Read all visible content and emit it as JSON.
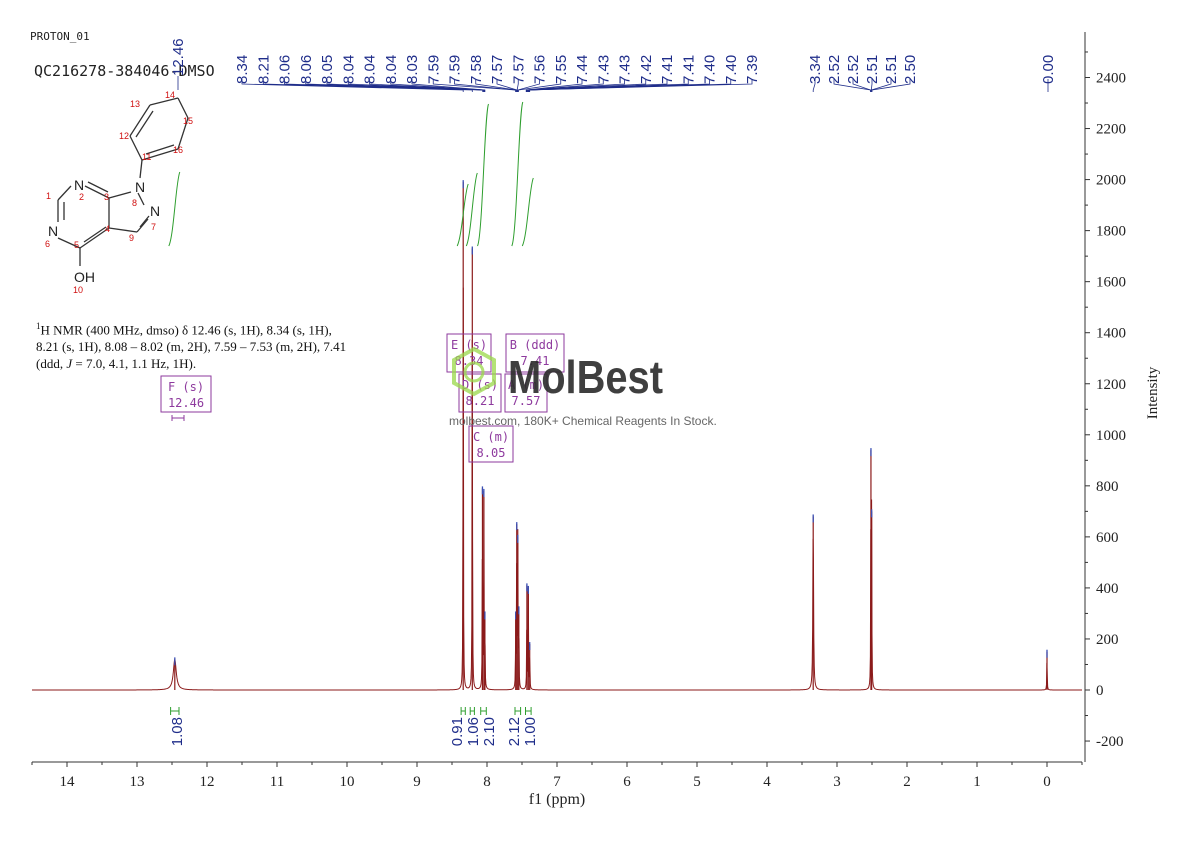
{
  "header": {
    "experiment": "PROTON_01",
    "sample": "QC216278-384046-DMSO"
  },
  "description": {
    "sup": "1",
    "line1": "H NMR (400 MHz, dmso) δ 12.46 (s, 1H), 8.34 (s, 1H),",
    "line2": "8.21 (s, 1H), 8.08 – 8.02 (m, 2H), 7.59 – 7.53 (m, 2H), 7.41",
    "line3_pre": "(ddd, ",
    "line3_j": "J",
    "line3_post": " = 7.0, 4.1, 1.1 Hz, 1H)."
  },
  "structure": {
    "atom_labels": {
      "N2": "N",
      "N6": "N",
      "N8": "N",
      "N7": "N",
      "O": "OH"
    },
    "numbers": [
      "1",
      "2",
      "3",
      "4",
      "5",
      "6",
      "7",
      "8",
      "9",
      "10",
      "11",
      "12",
      "13",
      "14",
      "15",
      "16"
    ]
  },
  "watermark": {
    "brand": "MolBest",
    "tagline": "molbest.com, 180K+ Chemical Reagents In Stock."
  },
  "colors": {
    "spectrum": "#8b1a1a",
    "peak_labels": "#1f2d8a",
    "integrals": "#2e9e2e",
    "multiplet_boxes": "#8e3a9e",
    "atom_numbers": "#d01010",
    "watermark": "#2b2b2b",
    "watermark_logo": "#9ad84a"
  },
  "chart_data": {
    "type": "line",
    "title": "",
    "xlabel": "f1 (ppm)",
    "ylabel": "Intensity",
    "xlim": [
      14.5,
      -0.5
    ],
    "ylim": [
      -250,
      2600
    ],
    "x_ticks": [
      14,
      13,
      12,
      11,
      10,
      9,
      8,
      7,
      6,
      5,
      4,
      3,
      2,
      1,
      0
    ],
    "y_ticks": [
      2400,
      2200,
      2000,
      1800,
      1600,
      1400,
      1200,
      1000,
      800,
      600,
      400,
      200,
      0,
      -200
    ],
    "peaks": [
      {
        "ppm": 12.46,
        "height": 120,
        "width": 0.025
      },
      {
        "ppm": 8.34,
        "height": 1990,
        "width": 0.003
      },
      {
        "ppm": 8.21,
        "height": 1730,
        "width": 0.003
      },
      {
        "ppm": 8.065,
        "height": 790,
        "width": 0.003
      },
      {
        "ppm": 8.045,
        "height": 780,
        "width": 0.003
      },
      {
        "ppm": 8.03,
        "height": 300,
        "width": 0.003
      },
      {
        "ppm": 7.59,
        "height": 300,
        "width": 0.003
      },
      {
        "ppm": 7.575,
        "height": 650,
        "width": 0.003
      },
      {
        "ppm": 7.56,
        "height": 600,
        "width": 0.003
      },
      {
        "ppm": 7.545,
        "height": 320,
        "width": 0.003
      },
      {
        "ppm": 7.43,
        "height": 410,
        "width": 0.003
      },
      {
        "ppm": 7.41,
        "height": 400,
        "width": 0.003
      },
      {
        "ppm": 7.39,
        "height": 180,
        "width": 0.003
      },
      {
        "ppm": 3.34,
        "height": 680,
        "width": 0.006
      },
      {
        "ppm": 2.515,
        "height": 940,
        "width": 0.003
      },
      {
        "ppm": 2.505,
        "height": 700,
        "width": 0.003
      },
      {
        "ppm": 0.0,
        "height": 150,
        "width": 0.003
      }
    ],
    "peak_labels_group1": [
      "8.34",
      "8.21",
      "8.06",
      "8.06",
      "8.05",
      "8.04",
      "8.04",
      "8.04",
      "8.03",
      "7.59",
      "7.59",
      "7.58",
      "7.57",
      "7.57",
      "7.56",
      "7.55",
      "7.44",
      "7.43",
      "7.43",
      "7.42",
      "7.41",
      "7.41",
      "7.40",
      "7.40",
      "7.39"
    ],
    "peak_labels_group1_ppm": [
      8.34,
      8.21,
      8.06,
      8.06,
      8.05,
      8.04,
      8.04,
      8.04,
      8.03,
      7.59,
      7.59,
      7.58,
      7.57,
      7.57,
      7.56,
      7.55,
      7.44,
      7.43,
      7.43,
      7.42,
      7.41,
      7.41,
      7.4,
      7.4,
      7.39
    ],
    "peak_labels_group2": [
      "3.34",
      "2.52",
      "2.52",
      "2.51",
      "2.51",
      "2.50"
    ],
    "peak_labels_group2_ppm": [
      3.34,
      2.52,
      2.52,
      2.51,
      2.51,
      2.5
    ],
    "peak_label_tms": {
      "label": "0.00",
      "ppm": 0.0
    },
    "peak_label_nh": {
      "label": "12.46",
      "ppm": 12.46
    },
    "integrals": [
      {
        "label": "1.08",
        "from": 12.52,
        "to": 12.4
      },
      {
        "label": "0.91",
        "from": 8.37,
        "to": 8.31
      },
      {
        "label": "1.06",
        "from": 8.24,
        "to": 8.18
      },
      {
        "label": "2.10",
        "from": 8.09,
        "to": 8.01
      },
      {
        "label": "2.12",
        "from": 7.6,
        "to": 7.52
      },
      {
        "label": "1.00",
        "from": 7.45,
        "to": 7.37
      }
    ],
    "multiplets": [
      {
        "label": "F (s)",
        "value": "12.46"
      },
      {
        "label": "E (s)",
        "value": "8.34"
      },
      {
        "label": "D (s)",
        "value": "8.21"
      },
      {
        "label": "C (m)",
        "value": "8.05"
      },
      {
        "label": "B (ddd)",
        "value": "7.41"
      },
      {
        "label": "A (m)",
        "value": "7.57"
      }
    ]
  }
}
